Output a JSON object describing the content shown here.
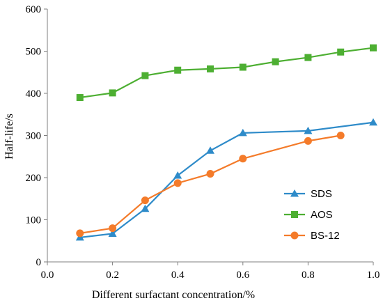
{
  "chart_data": {
    "type": "line",
    "xlabel": "Different surfactant concentration/%",
    "ylabel": "Half-life/s",
    "xlim": [
      0.0,
      1.0
    ],
    "ylim": [
      0,
      600
    ],
    "x_ticks": [
      "0.0",
      "0.2",
      "0.4",
      "0.6",
      "0.8",
      "1.0"
    ],
    "y_ticks": [
      "0",
      "100",
      "200",
      "300",
      "400",
      "500",
      "600"
    ],
    "grid": false,
    "legend_position": "bottom-right",
    "series": [
      {
        "name": "SDS",
        "color": "#2e8bc9",
        "marker": "triangle",
        "x": [
          0.1,
          0.2,
          0.3,
          0.4,
          0.5,
          0.6,
          0.8,
          1.0
        ],
        "y": [
          58,
          67,
          126,
          205,
          264,
          306,
          311,
          331
        ]
      },
      {
        "name": "AOS",
        "color": "#4daf32",
        "marker": "square",
        "x": [
          0.1,
          0.2,
          0.3,
          0.4,
          0.5,
          0.6,
          0.7,
          0.8,
          0.9,
          1.0
        ],
        "y": [
          390,
          401,
          442,
          455,
          458,
          462,
          475,
          485,
          498,
          508
        ]
      },
      {
        "name": "BS-12",
        "color": "#f47b2a",
        "marker": "circle",
        "x": [
          0.1,
          0.2,
          0.3,
          0.4,
          0.5,
          0.6,
          0.8,
          0.9
        ],
        "y": [
          68,
          80,
          146,
          187,
          209,
          245,
          287,
          300
        ]
      }
    ]
  }
}
